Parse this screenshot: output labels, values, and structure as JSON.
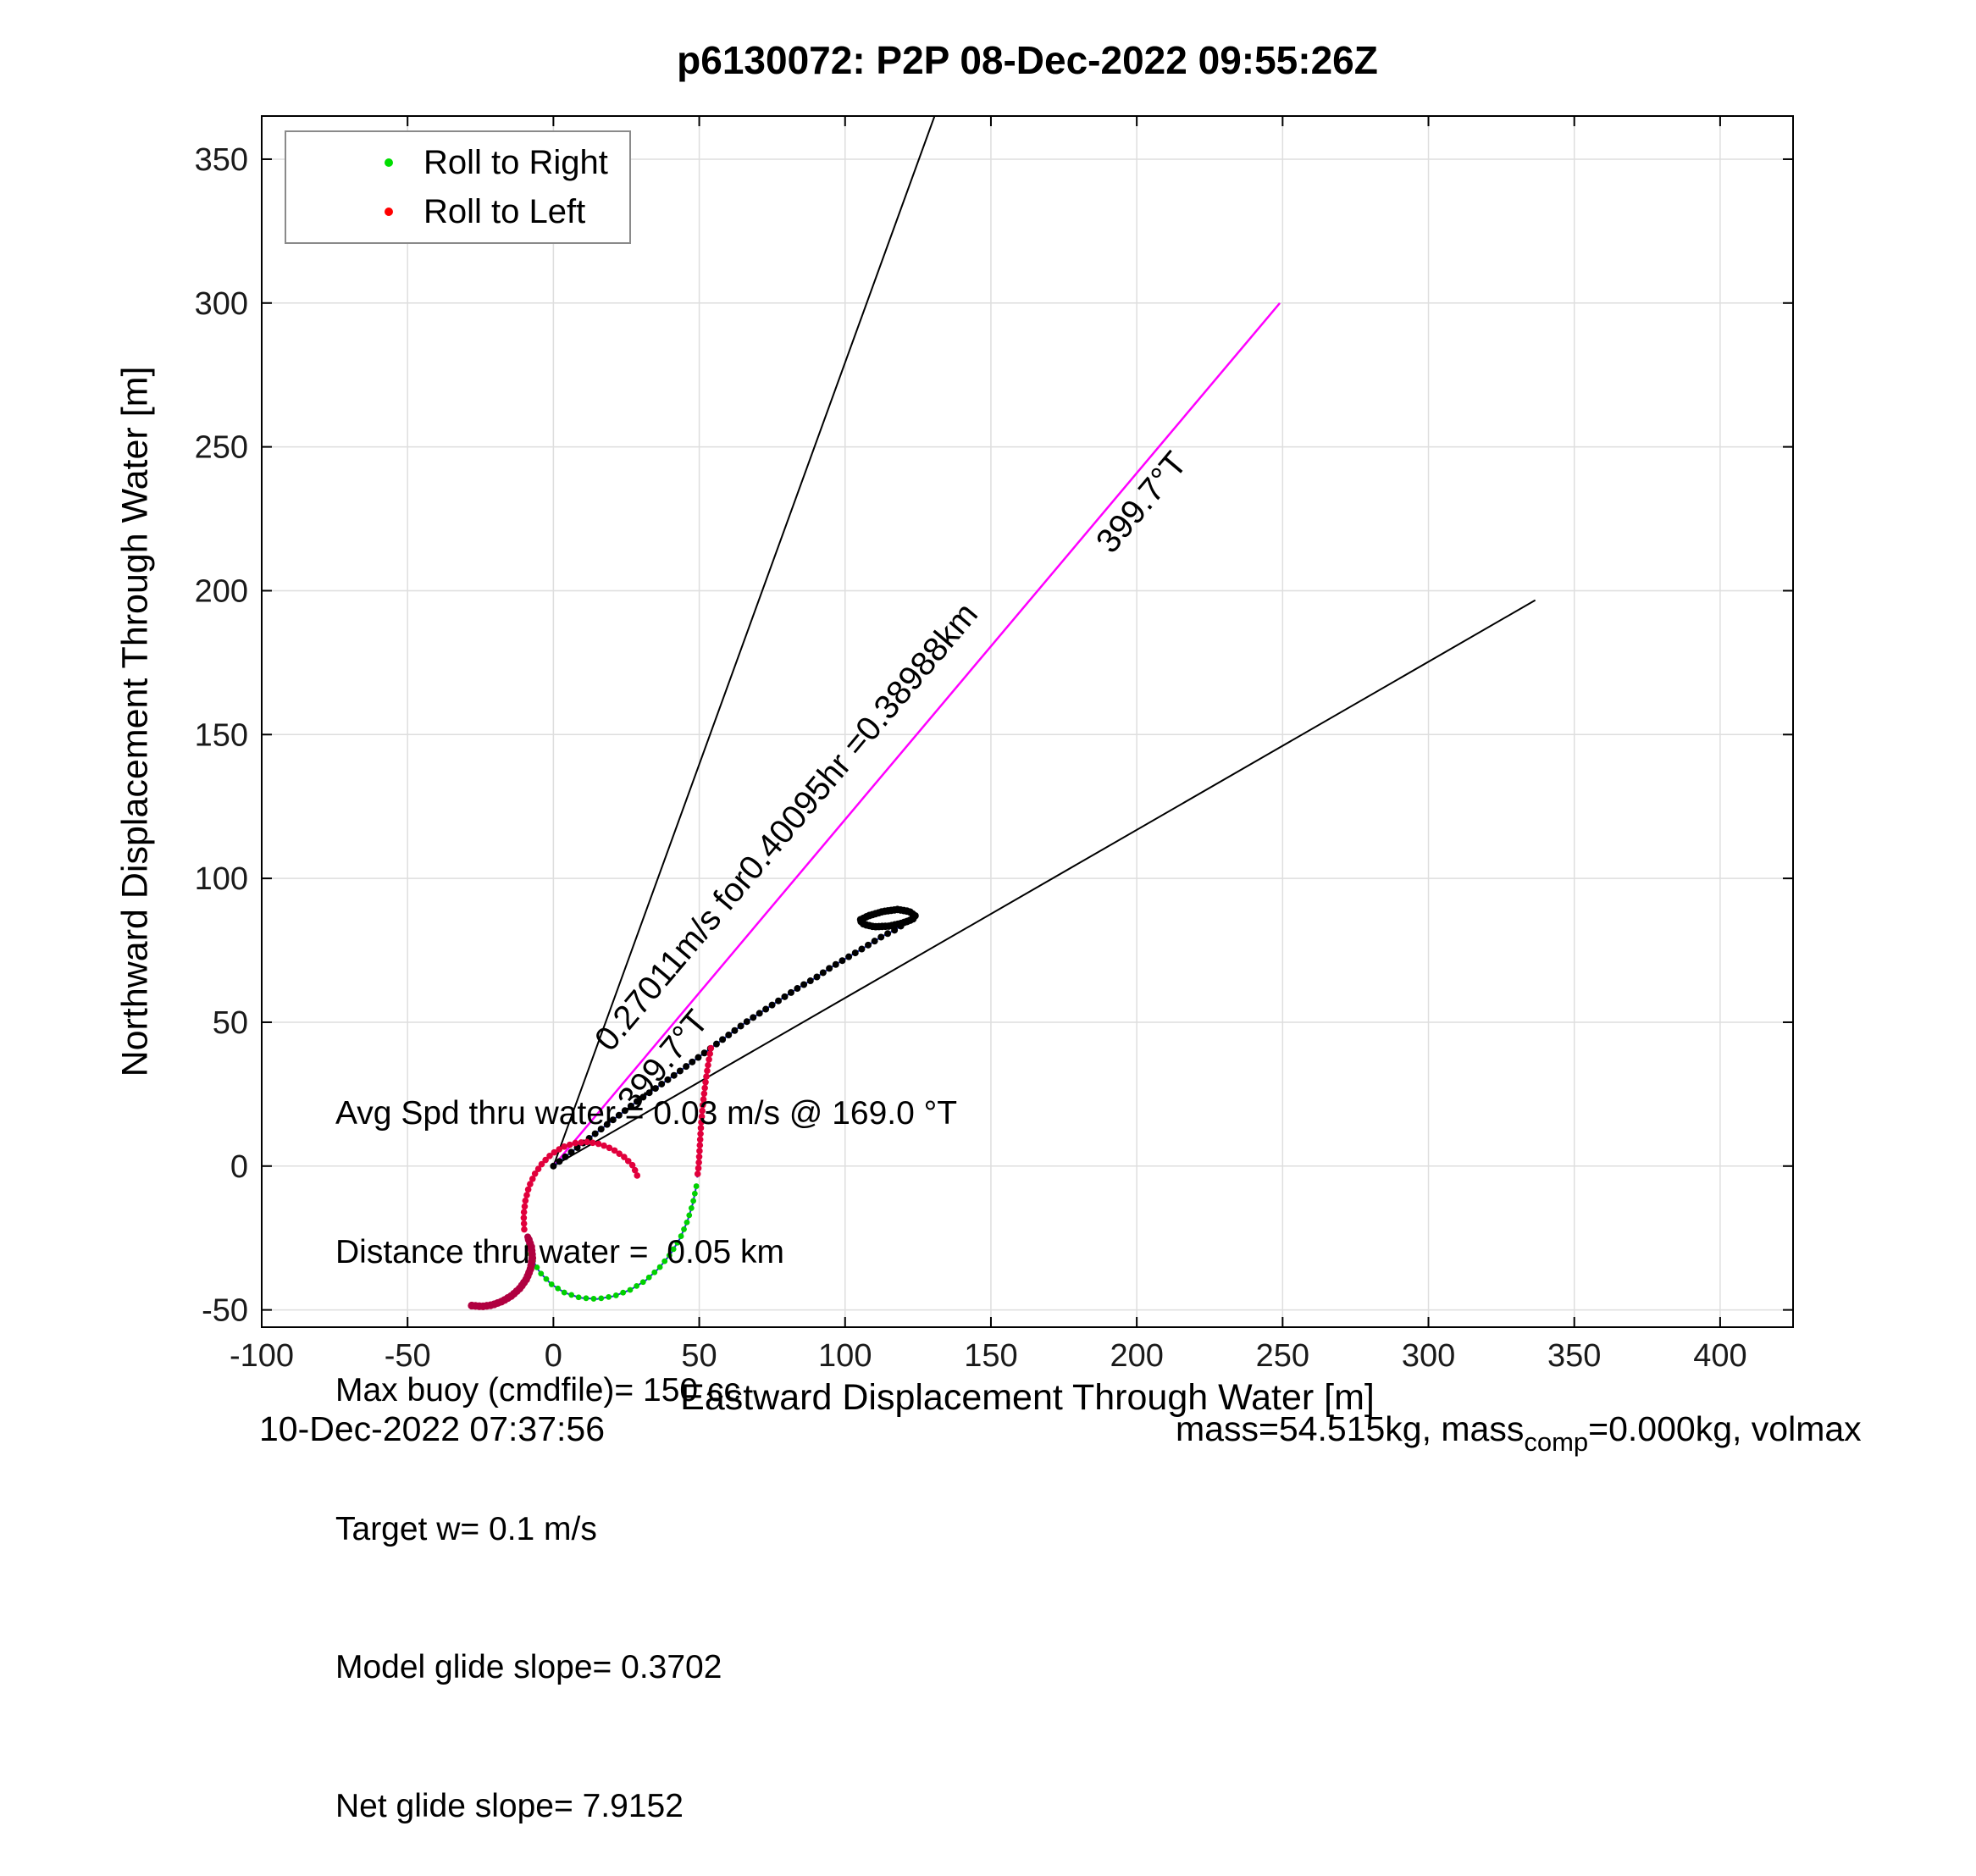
{
  "title": "p6130072: P2P 08-Dec-2022 09:55:26Z",
  "chart_data": {
    "type": "scatter",
    "title": "p6130072: P2P 08-Dec-2022 09:55:26Z",
    "xlabel": "Eastward Displacement Through Water [m]",
    "ylabel": "Northward Displacement Through Water [m]",
    "xlim": [
      -100,
      425
    ],
    "ylim": [
      -56,
      365
    ],
    "xticks": [
      -100,
      -50,
      0,
      50,
      100,
      150,
      200,
      250,
      300,
      350,
      400
    ],
    "yticks": [
      -50,
      0,
      50,
      100,
      150,
      200,
      250,
      300,
      350
    ],
    "grid": true,
    "grid_color": "#dedede",
    "axis_color": "#000000",
    "legend": {
      "position": "northwest",
      "items": [
        {
          "label": "Roll to Right",
          "color": "#00dd00"
        },
        {
          "label": "Roll to Left",
          "color": "#ff0000"
        }
      ]
    },
    "origin": [
      0,
      0
    ],
    "bearing_rays": {
      "radius_m": 389.88,
      "rays": [
        {
          "name": "left-sector-ray",
          "bearing_deg": 19.7,
          "color": "#000000",
          "width": 2
        },
        {
          "name": "target-bearing-ray",
          "bearing_deg": 39.7,
          "color": "#ff00ff",
          "width": 2.5
        },
        {
          "name": "right-sector-ray",
          "bearing_deg": 59.7,
          "color": "#000000",
          "width": 2
        }
      ]
    },
    "ray_labels": [
      {
        "text": "0.27011m/s for0.40095hr =0.38988km",
        "anchor": [
          21,
          38
        ],
        "bearing_deg": 39.7
      },
      {
        "text": "399.7°T",
        "anchor": [
          29,
          17
        ],
        "bearing_deg": 39.7
      },
      {
        "text": "399.7°T",
        "anchor": [
          193,
          211
        ],
        "bearing_deg": 39.7
      }
    ],
    "annotations": [
      "Avg Spd thru water = 0.03 m/s @ 169.0 °T",
      "Distance thru water =  0.05 km",
      "Max buoy (cmdfile)= 150 cc",
      "Target w= 0.1 m/s",
      "Model glide slope= 0.3702",
      "Net glide slope= 7.9152"
    ],
    "series": [
      {
        "name": "northeast-track",
        "marker_color": "#000000",
        "marker_r": 4.0,
        "step": 2.6,
        "line_color": "#2233cc",
        "points": [
          [
            0,
            0
          ],
          [
            7,
            5.5
          ],
          [
            14,
            11
          ],
          [
            21,
            16.5
          ],
          [
            28,
            22
          ],
          [
            35,
            27
          ],
          [
            42,
            32
          ],
          [
            48,
            36.5
          ],
          [
            54,
            41
          ],
          [
            60,
            45.5
          ],
          [
            66,
            50
          ],
          [
            72,
            54
          ],
          [
            78,
            58
          ],
          [
            84,
            62
          ],
          [
            90,
            65.5
          ],
          [
            95,
            69
          ],
          [
            100,
            72
          ],
          [
            105,
            75
          ],
          [
            109,
            77.5
          ],
          [
            113,
            80
          ],
          [
            117,
            82
          ],
          [
            120,
            84
          ],
          [
            122,
            85.5
          ],
          [
            124,
            87
          ]
        ]
      },
      {
        "name": "apogee-hook",
        "marker_color": "#000000",
        "marker_r": 4.4,
        "step": 1.1,
        "points": [
          [
            124,
            87
          ],
          [
            122,
            88.5
          ],
          [
            118,
            89.2
          ],
          [
            113,
            88.5
          ],
          [
            108,
            87
          ],
          [
            105,
            85.5
          ],
          [
            106.5,
            84
          ],
          [
            110,
            83.2
          ],
          [
            115,
            83.4
          ],
          [
            119,
            84.3
          ],
          [
            122,
            85.3
          ],
          [
            124,
            86.3
          ]
        ]
      },
      {
        "name": "roll-left-descent",
        "marker_color": "#e1003c",
        "marker_r": 3.8,
        "step": 2.0,
        "line_color": "#2233cc",
        "points": [
          [
            54,
            41
          ],
          [
            53,
            35
          ],
          [
            52,
            28
          ],
          [
            51.2,
            21
          ],
          [
            50.6,
            14
          ],
          [
            50.2,
            7
          ],
          [
            49.8,
            0
          ],
          [
            49.3,
            -4
          ]
        ]
      },
      {
        "name": "roll-right-arc",
        "marker_color": "#00d100",
        "marker_r": 3.4,
        "step": 2.6,
        "line_color": "#2233cc",
        "points": [
          [
            49,
            -7
          ],
          [
            47.8,
            -13
          ],
          [
            46,
            -19
          ],
          [
            43.5,
            -25
          ],
          [
            40.2,
            -30.5
          ],
          [
            36.2,
            -35.5
          ],
          [
            31.6,
            -39.8
          ],
          [
            26.4,
            -43
          ],
          [
            20.8,
            -45.2
          ],
          [
            15,
            -46.2
          ],
          [
            9.2,
            -45.8
          ],
          [
            3.8,
            -44
          ],
          [
            -0.8,
            -41
          ],
          [
            -4.6,
            -37
          ],
          [
            -7.4,
            -32.2
          ],
          [
            -9.2,
            -27
          ]
        ]
      },
      {
        "name": "roll-left-spiral",
        "marker_color": "#e1003c",
        "marker_r": 3.8,
        "step": 2.0,
        "line_color": "#2233cc",
        "points": [
          [
            -10,
            -22
          ],
          [
            -10.2,
            -17
          ],
          [
            -9.6,
            -12
          ],
          [
            -8.4,
            -7.2
          ],
          [
            -6.4,
            -2.8
          ],
          [
            -3.8,
            1
          ],
          [
            -0.6,
            4.2
          ],
          [
            3.2,
            6.6
          ],
          [
            7.4,
            8
          ],
          [
            11.8,
            8.4
          ],
          [
            16.2,
            7.6
          ],
          [
            20.4,
            5.8
          ],
          [
            24.2,
            3.2
          ],
          [
            27.4,
            0
          ],
          [
            29,
            -4
          ]
        ]
      },
      {
        "name": "end-drift-tail",
        "marker_color": "#b00040",
        "marker_r": 4.6,
        "step": 1.3,
        "stroke_width": 8,
        "points": [
          [
            -28,
            -48.5
          ],
          [
            -24.5,
            -48.8
          ],
          [
            -21,
            -48.3
          ],
          [
            -17.5,
            -47
          ],
          [
            -14.2,
            -45
          ],
          [
            -11.4,
            -42.4
          ],
          [
            -9.2,
            -39.2
          ],
          [
            -7.8,
            -35.6
          ],
          [
            -7.2,
            -31.8
          ],
          [
            -7.6,
            -28
          ],
          [
            -8.8,
            -24.6
          ]
        ]
      }
    ]
  },
  "footer": {
    "datetime": "10-Dec-2022 07:37:56",
    "mass_prefix": "mass=54.515kg, mass",
    "mass_sub": "comp",
    "mass_suffix": "=0.000kg, volmax"
  }
}
